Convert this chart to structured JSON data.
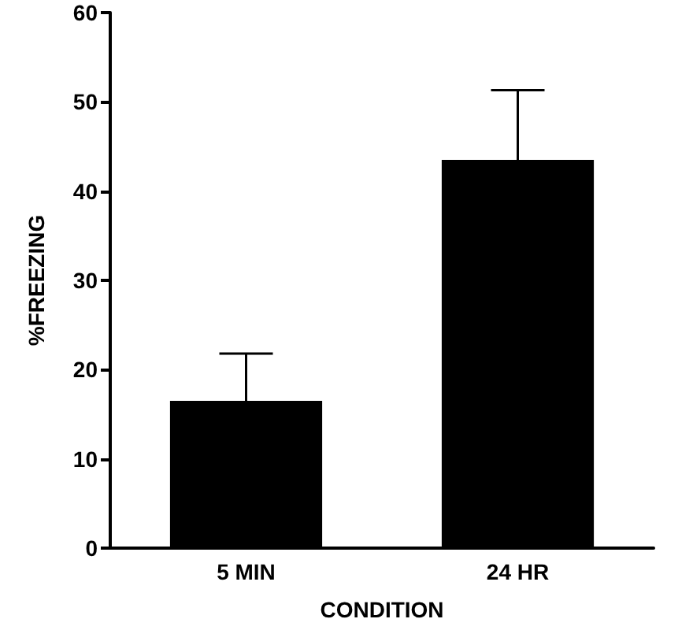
{
  "chart_data": {
    "type": "bar",
    "xlabel": "CONDITION",
    "ylabel": "%FREEZING",
    "categories": [
      "5 MIN",
      "24 HR"
    ],
    "values": [
      16.5,
      43.5
    ],
    "errors": [
      [
        16.5,
        21.8
      ],
      [
        43.5,
        51.3
      ]
    ],
    "color": "#000000",
    "ylim": [
      0,
      60
    ],
    "yticks": [
      0,
      10,
      20,
      30,
      40,
      50,
      60
    ],
    "grid": false
  }
}
